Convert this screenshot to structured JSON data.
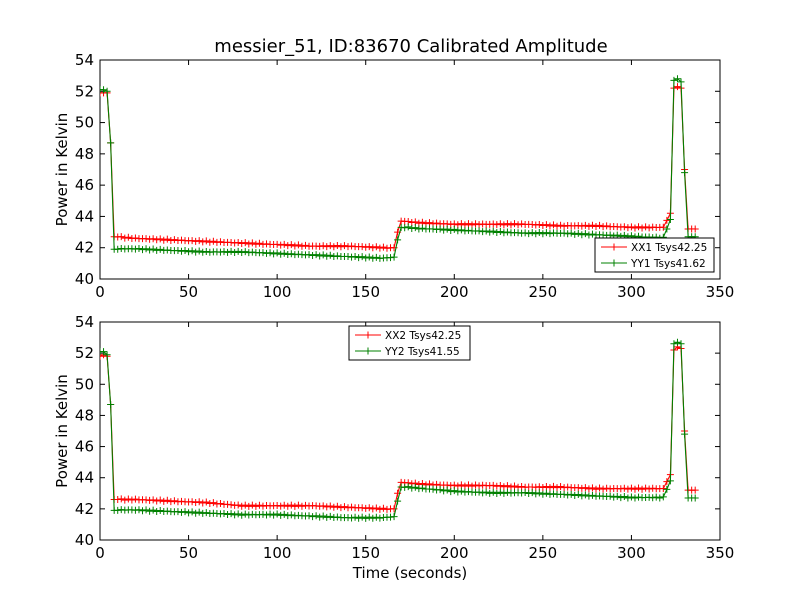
{
  "title": "messier_51, ID:83670 Calibrated Amplitude",
  "chart_data": [
    {
      "type": "line",
      "title": "messier_51, ID:83670 Calibrated Amplitude",
      "xlabel": "",
      "ylabel": "Power in Kelvin",
      "xlim": [
        0,
        350
      ],
      "ylim": [
        40,
        54
      ],
      "xticks": [
        0,
        50,
        100,
        150,
        200,
        250,
        300,
        350
      ],
      "yticks": [
        40,
        42,
        44,
        46,
        48,
        50,
        52,
        54
      ],
      "legend_position": "lower-right",
      "series": [
        {
          "name": "XX1 Tsys42.25",
          "color": "#ff0000",
          "x": [
            0,
            2,
            4,
            6,
            8,
            20,
            40,
            60,
            80,
            100,
            120,
            140,
            160,
            166,
            168,
            170,
            180,
            200,
            220,
            240,
            260,
            280,
            300,
            318,
            322,
            324,
            326,
            328,
            330,
            332,
            336
          ],
          "y": [
            51.9,
            51.9,
            51.9,
            48.7,
            42.7,
            42.6,
            42.5,
            42.4,
            42.3,
            42.2,
            42.1,
            42.1,
            42.0,
            42.0,
            43.0,
            43.7,
            43.6,
            43.5,
            43.5,
            43.5,
            43.4,
            43.4,
            43.3,
            43.3,
            44.2,
            52.2,
            52.3,
            52.2,
            47.0,
            43.2,
            43.2
          ]
        },
        {
          "name": "YY1 Tsys41.62",
          "color": "#008000",
          "x": [
            0,
            2,
            4,
            6,
            8,
            20,
            40,
            60,
            80,
            100,
            120,
            140,
            160,
            166,
            168,
            170,
            180,
            200,
            220,
            240,
            260,
            280,
            300,
            318,
            322,
            324,
            326,
            328,
            330,
            332,
            336
          ],
          "y": [
            52.1,
            52.1,
            52.0,
            48.7,
            41.9,
            41.9,
            41.8,
            41.7,
            41.7,
            41.6,
            41.5,
            41.4,
            41.3,
            41.4,
            42.5,
            43.3,
            43.2,
            43.1,
            43.0,
            42.9,
            42.9,
            42.8,
            42.7,
            42.6,
            43.8,
            52.7,
            52.8,
            52.6,
            46.8,
            42.7,
            42.7
          ]
        }
      ]
    },
    {
      "type": "line",
      "title": "",
      "xlabel": "Time (seconds)",
      "ylabel": "Power in Kelvin",
      "xlim": [
        0,
        350
      ],
      "ylim": [
        40,
        54
      ],
      "xticks": [
        0,
        50,
        100,
        150,
        200,
        250,
        300,
        350
      ],
      "yticks": [
        40,
        42,
        44,
        46,
        48,
        50,
        52,
        54
      ],
      "legend_position": "upper-center",
      "series": [
        {
          "name": "XX2 Tsys42.25",
          "color": "#ff0000",
          "x": [
            0,
            2,
            4,
            6,
            8,
            20,
            40,
            60,
            80,
            100,
            120,
            140,
            160,
            166,
            168,
            170,
            180,
            200,
            220,
            240,
            260,
            280,
            300,
            318,
            322,
            324,
            326,
            328,
            330,
            332,
            336
          ],
          "y": [
            51.8,
            51.9,
            51.8,
            48.7,
            42.6,
            42.6,
            42.5,
            42.4,
            42.2,
            42.2,
            42.2,
            42.1,
            42.0,
            42.0,
            43.0,
            43.7,
            43.6,
            43.5,
            43.5,
            43.4,
            43.4,
            43.3,
            43.3,
            43.3,
            44.2,
            52.2,
            52.4,
            52.3,
            47.0,
            43.2,
            43.2
          ]
        },
        {
          "name": "YY2 Tsys41.55",
          "color": "#008000",
          "x": [
            0,
            2,
            4,
            6,
            8,
            20,
            40,
            60,
            80,
            100,
            120,
            140,
            160,
            166,
            168,
            170,
            180,
            200,
            220,
            240,
            260,
            280,
            300,
            318,
            322,
            324,
            326,
            328,
            330,
            332,
            336
          ],
          "y": [
            52.1,
            52.1,
            51.9,
            48.7,
            41.9,
            41.9,
            41.8,
            41.7,
            41.6,
            41.6,
            41.5,
            41.4,
            41.4,
            41.5,
            42.5,
            43.4,
            43.3,
            43.1,
            43.0,
            43.0,
            42.9,
            42.8,
            42.7,
            42.7,
            43.8,
            52.6,
            52.7,
            52.6,
            46.8,
            42.7,
            42.7
          ]
        }
      ]
    }
  ]
}
